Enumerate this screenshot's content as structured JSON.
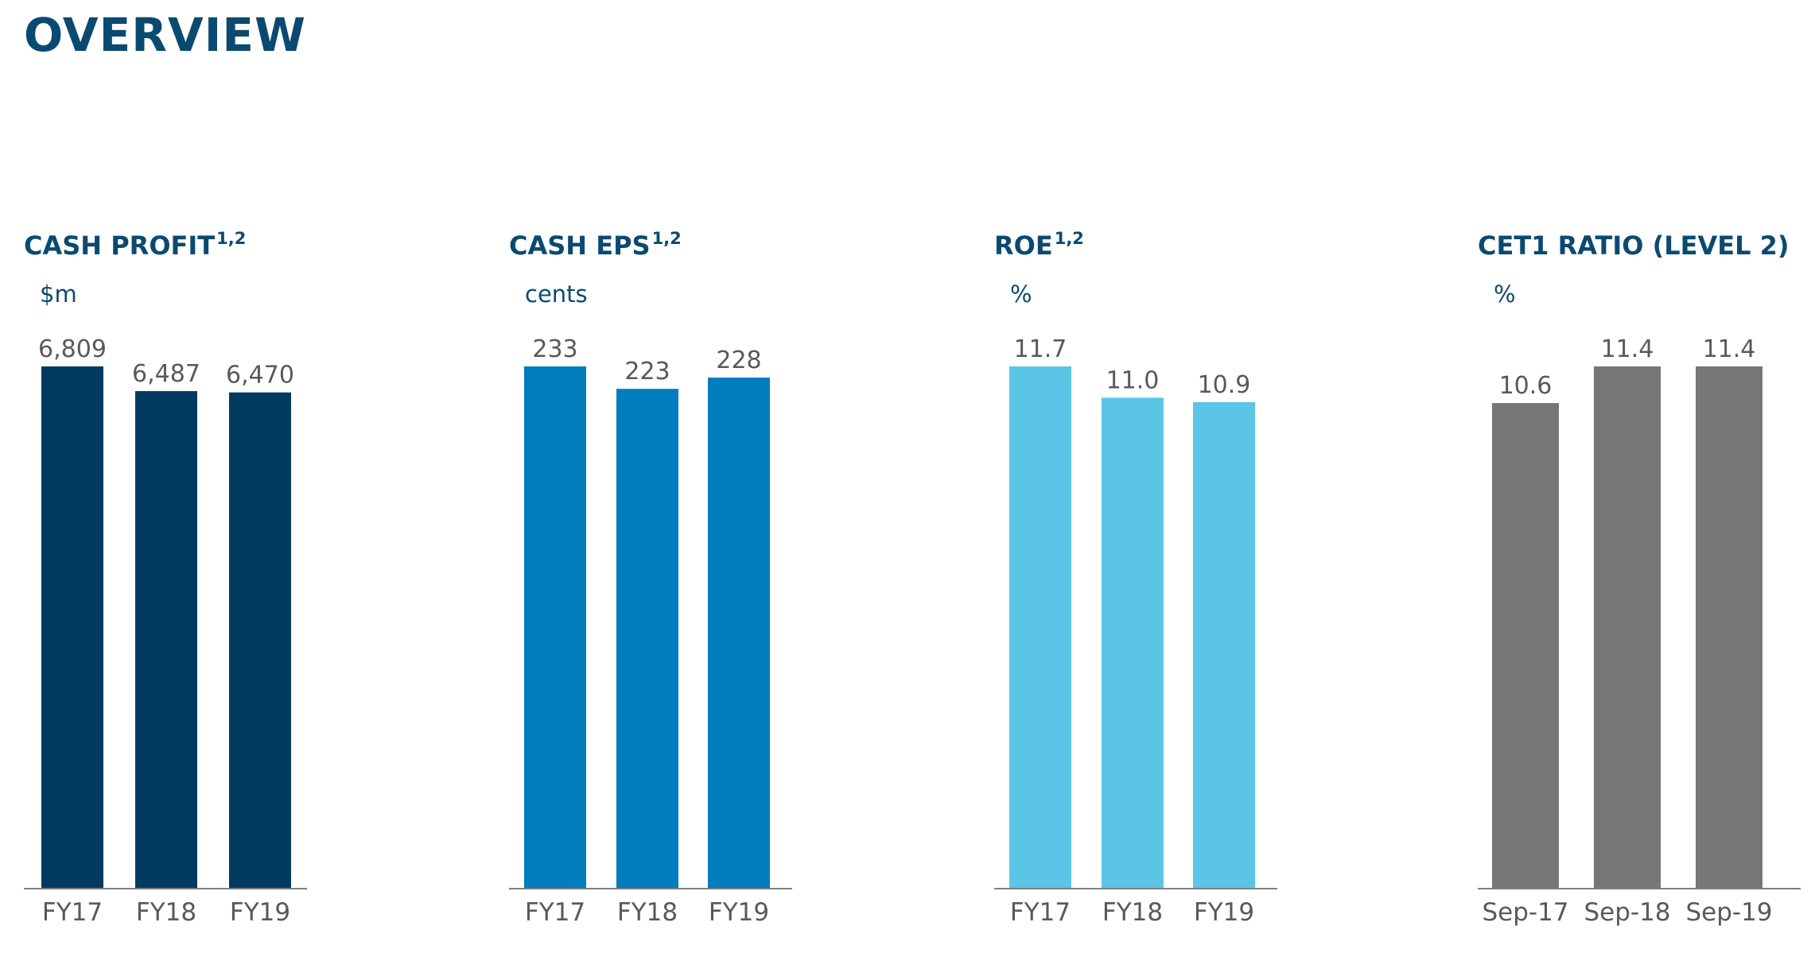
{
  "page": {
    "title": "OVERVIEW"
  },
  "chart_data": [
    {
      "type": "bar",
      "title": "CASH PROFIT",
      "title_superscript": "1,2",
      "unit": "$m",
      "color": "#003b5f",
      "categories": [
        "FY17",
        "FY18",
        "FY19"
      ],
      "values": [
        6809,
        6487,
        6470
      ],
      "value_labels": [
        "6,809",
        "6,487",
        "6,470"
      ],
      "ylim": [
        0,
        6809
      ],
      "grid": false,
      "legend": "none"
    },
    {
      "type": "bar",
      "title": "CASH EPS",
      "title_superscript": "1,2",
      "unit": "cents",
      "color": "#007dbd",
      "categories": [
        "FY17",
        "FY18",
        "FY19"
      ],
      "values": [
        233,
        223,
        228
      ],
      "value_labels": [
        "233",
        "223",
        "228"
      ],
      "ylim": [
        0,
        233
      ],
      "grid": false,
      "legend": "none"
    },
    {
      "type": "bar",
      "title": "ROE",
      "title_superscript": "1,2",
      "unit": "%",
      "color": "#5bc5e7",
      "categories": [
        "FY17",
        "FY18",
        "FY19"
      ],
      "values": [
        11.7,
        11.0,
        10.9
      ],
      "value_labels": [
        "11.7",
        "11.0",
        "10.9"
      ],
      "ylim": [
        0,
        11.7
      ],
      "grid": false,
      "legend": "none"
    },
    {
      "type": "bar",
      "title": "CET1 RATIO (LEVEL 2)",
      "title_superscript": "",
      "unit": "%",
      "color": "#747678",
      "categories": [
        "Sep-17",
        "Sep-18",
        "Sep-19"
      ],
      "values": [
        10.6,
        11.4,
        11.4
      ],
      "value_labels": [
        "10.6",
        "11.4",
        "11.4"
      ],
      "ylim": [
        0,
        11.4
      ],
      "grid": false,
      "legend": "none"
    }
  ]
}
